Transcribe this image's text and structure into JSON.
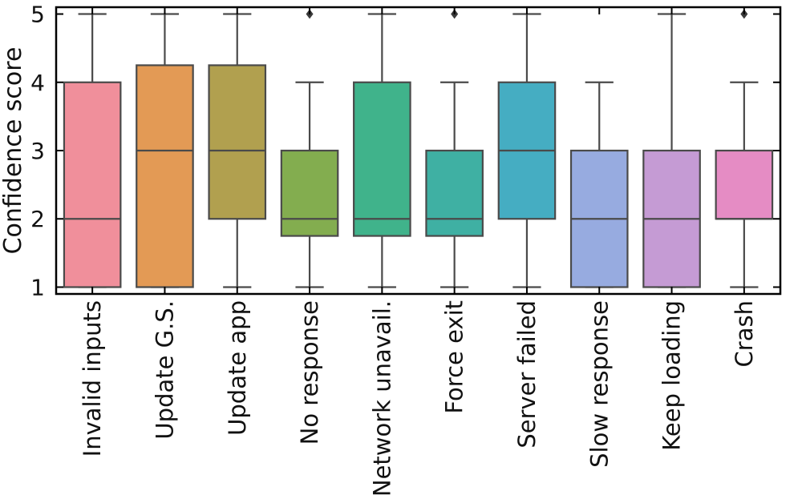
{
  "chart_data": {
    "type": "box",
    "ylabel": "Confidence score",
    "xlabel": "",
    "ylim": [
      0.9,
      5.1
    ],
    "yticks": [
      1,
      2,
      3,
      4,
      5
    ],
    "grid": false,
    "categories": [
      "Invalid inputs",
      "Update G.S.",
      "Update app",
      "No response",
      "Network unavail.",
      "Force exit",
      "Server failed",
      "Slow response",
      "Keep loading",
      "Crash"
    ],
    "boxes": [
      {
        "whisker_low": 1,
        "q1": 1,
        "median": 2,
        "q3": 4,
        "whisker_high": 5,
        "outliers": []
      },
      {
        "whisker_low": 1,
        "q1": 1,
        "median": 3,
        "q3": 4.25,
        "whisker_high": 5,
        "outliers": []
      },
      {
        "whisker_low": 1,
        "q1": 2,
        "median": 3,
        "q3": 4.25,
        "whisker_high": 5,
        "outliers": []
      },
      {
        "whisker_low": 1,
        "q1": 1.75,
        "median": 2,
        "q3": 3,
        "whisker_high": 4,
        "outliers": [
          5
        ]
      },
      {
        "whisker_low": 1,
        "q1": 1.75,
        "median": 2,
        "q3": 4,
        "whisker_high": 5,
        "outliers": []
      },
      {
        "whisker_low": 1,
        "q1": 1.75,
        "median": 2,
        "q3": 3,
        "whisker_high": 4,
        "outliers": [
          5
        ]
      },
      {
        "whisker_low": 1,
        "q1": 2,
        "median": 3,
        "q3": 4,
        "whisker_high": 5,
        "outliers": []
      },
      {
        "whisker_low": 1,
        "q1": 1,
        "median": 2,
        "q3": 3,
        "whisker_high": 4,
        "outliers": []
      },
      {
        "whisker_low": 1,
        "q1": 1,
        "median": 2,
        "q3": 3,
        "whisker_high": 5,
        "outliers": []
      },
      {
        "whisker_low": 1,
        "q1": 2,
        "median": 2,
        "q3": 3,
        "whisker_high": 4,
        "outliers": [
          5
        ]
      }
    ],
    "colors": [
      "#f08f9b",
      "#e39a55",
      "#b1a04f",
      "#83ad4f",
      "#40b38b",
      "#3fb0a3",
      "#45adc2",
      "#97abe0",
      "#c59bd4",
      "#e58cc4"
    ],
    "edge_color": "#4a4a4a"
  }
}
